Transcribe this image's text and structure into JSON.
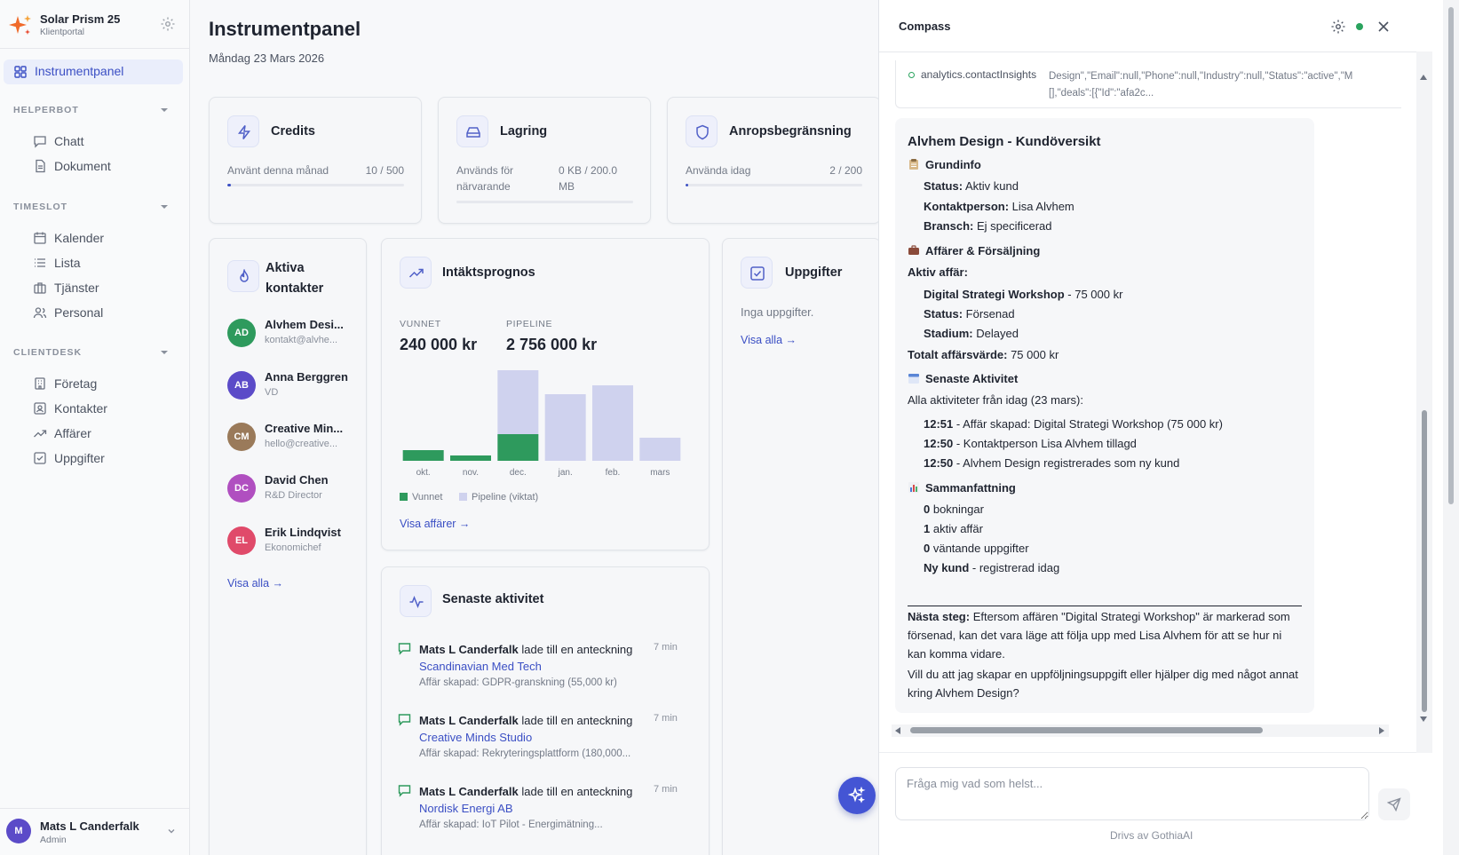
{
  "brand": {
    "title": "Solar Prism 25",
    "subtitle": "Klientportal"
  },
  "sidebar": {
    "active": "Instrumentpanel",
    "sections": [
      {
        "title": "HELPERBOT",
        "items": [
          "Chatt",
          "Dokument"
        ]
      },
      {
        "title": "TIMESLOT",
        "items": [
          "Kalender",
          "Lista",
          "Tjänster",
          "Personal"
        ]
      },
      {
        "title": "CLIENTDESK",
        "items": [
          "Företag",
          "Kontakter",
          "Affärer",
          "Uppgifter"
        ]
      }
    ]
  },
  "user": {
    "initial": "M",
    "name": "Mats L Canderfalk",
    "role": "Admin"
  },
  "page": {
    "title": "Instrumentpanel",
    "date": "Måndag 23 Mars 2026"
  },
  "stats": {
    "credits": {
      "title": "Credits",
      "label": "Använt denna månad",
      "value": "10 / 500",
      "progress": 0.02
    },
    "storage": {
      "title": "Lagring",
      "label": "Används för närvarande",
      "value": "0 KB / 200.0 MB",
      "progress": 0
    },
    "rate": {
      "title": "Anropsbegränsning",
      "label": "Använda idag",
      "value": "2 / 200",
      "progress": 0.01
    }
  },
  "contacts": {
    "title": "Aktiva kontakter",
    "items": [
      {
        "initials": "AD",
        "name": "Alvhem Desi...",
        "sub": "kontakt@alvhe...",
        "color": "#2e9a5d"
      },
      {
        "initials": "AB",
        "name": "Anna Berggren",
        "sub": "VD",
        "color": "#5b4bc8"
      },
      {
        "initials": "CM",
        "name": "Creative Min...",
        "sub": "hello@creative...",
        "color": "#9a7a5a"
      },
      {
        "initials": "DC",
        "name": "David Chen",
        "sub": "R&D Director",
        "color": "#b04fc0"
      },
      {
        "initials": "EL",
        "name": "Erik Lindqvist",
        "sub": "Ekonomichef",
        "color": "#e04a6a"
      }
    ],
    "view_all": "Visa alla →"
  },
  "revenue": {
    "title": "Intäktsprognos",
    "won_label": "VUNNET",
    "won_value": "240 000 kr",
    "pipeline_label": "PIPELINE",
    "pipeline_value": "2 756 000 kr",
    "legend_won": "Vunnet",
    "legend_pipeline": "Pipeline (viktat)",
    "link": "Visa affärer →"
  },
  "chart_data": {
    "type": "bar",
    "stacked": true,
    "categories": [
      "okt.",
      "nov.",
      "dec.",
      "jan.",
      "feb.",
      "mars"
    ],
    "series": [
      {
        "name": "Vunnet",
        "values": [
          12,
          6,
          30,
          0,
          0,
          0
        ],
        "color": "#2e9a5d"
      },
      {
        "name": "Pipeline (viktat)",
        "values": [
          0,
          0,
          72,
          75,
          85,
          26
        ],
        "color": "#cfd2ee"
      }
    ],
    "ylim": [
      0,
      110
    ]
  },
  "tasks": {
    "title": "Uppgifter",
    "empty": "Inga uppgifter.",
    "link": "Visa alla →"
  },
  "activity": {
    "title": "Senaste aktivitet",
    "items": [
      {
        "who": "Mats L Canderfalk",
        "action": " lade till en anteckning ",
        "target": "Scandinavian Med Tech",
        "detail": "Affär skapad: GDPR-granskning (55,000 kr)",
        "time": "7 min"
      },
      {
        "who": "Mats L Canderfalk",
        "action": " lade till en anteckning ",
        "target": "Creative Minds Studio",
        "detail": "Affär skapad: Rekryteringsplattform (180,000...",
        "time": "7 min"
      },
      {
        "who": "Mats L Canderfalk",
        "action": " lade till en anteckning ",
        "target": "Nordisk Energi AB",
        "detail": "Affär skapad: IoT Pilot - Energimätning...",
        "time": "7 min"
      }
    ]
  },
  "compass": {
    "title": "Compass",
    "tool_name": "analytics.contactInsights",
    "tool_result": "Design\",\"Email\":null,\"Phone\":null,\"Industry\":null,\"Status\":\"active\",\"M [],\"deals\":[{\"Id\":\"afa2c...",
    "heading": "Alvhem Design - Kundöversikt",
    "s1_title": "Grundinfo",
    "s1_lines": [
      {
        "k": "Status:",
        "v": " Aktiv kund"
      },
      {
        "k": "Kontaktperson:",
        "v": " Lisa Alvhem"
      },
      {
        "k": "Bransch:",
        "v": " Ej specificerad"
      }
    ],
    "s2_title": "Affärer & Försäljning",
    "s2_active": "Aktiv affär:",
    "s2_lines": [
      {
        "k": "Digital Strategi Workshop",
        "v": " - 75 000 kr"
      },
      {
        "k": "Status:",
        "v": " Försenad"
      },
      {
        "k": "Stadium:",
        "v": " Delayed"
      }
    ],
    "s2_total_k": "Totalt affärsvärde:",
    "s2_total_v": " 75 000 kr",
    "s3_title": "Senaste Aktivitet",
    "s3_intro": "Alla aktiviteter från idag (23 mars):",
    "s3_lines": [
      {
        "k": "12:51",
        "v": " - Affär skapad: Digital Strategi Workshop (75 000 kr)"
      },
      {
        "k": "12:50",
        "v": " - Kontaktperson Lisa Alvhem tillagd"
      },
      {
        "k": "12:50",
        "v": " - Alvhem Design registrerades som ny kund"
      }
    ],
    "s4_title": "Sammanfattning",
    "s4_lines": [
      {
        "k": "0",
        "v": " bokningar"
      },
      {
        "k": "1",
        "v": " aktiv affär"
      },
      {
        "k": "0",
        "v": " väntande uppgifter"
      },
      {
        "k": "Ny kund",
        "v": " - registrerad idag"
      }
    ],
    "next_k": "Nästa steg:",
    "next_v": " Eftersom affären \"Digital Strategi Workshop\" är markerad som försenad, kan det vara läge att följa upp med Lisa Alvhem för att se hur ni kan komma vidare.",
    "closing": "Vill du att jag skapar en uppföljningsuppgift eller hjälper dig med något annat kring Alvhem Design?",
    "input_placeholder": "Fråga mig vad som helst...",
    "powered": "Drivs av GothiaAI"
  }
}
